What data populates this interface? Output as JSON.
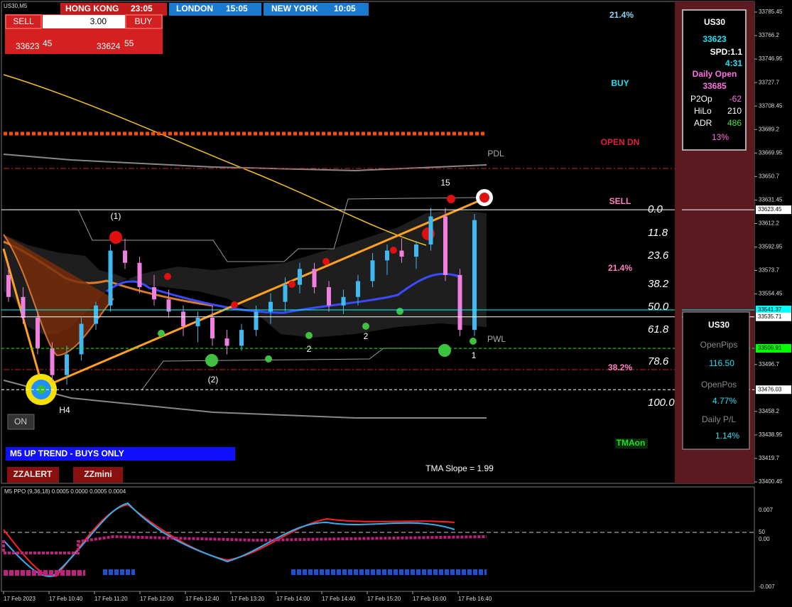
{
  "symbol_label": "US30,M5",
  "sessions": [
    {
      "name": "HONG KONG",
      "time": "23:05"
    },
    {
      "name": "LONDON",
      "time": "15:05"
    },
    {
      "name": "NEW YORK",
      "time": "10:05"
    }
  ],
  "trade_panel": {
    "sell": "SELL",
    "lots": "3.00",
    "buy": "BUY",
    "bid_big": "33623",
    "bid_pips": "45",
    "ask_big": "33624",
    "ask_pips": "55"
  },
  "chart_data": {
    "type": "candlestick",
    "candles": [
      [
        33570,
        33580,
        33548,
        33552
      ],
      [
        33552,
        33560,
        33530,
        33535
      ],
      [
        33535,
        33540,
        33505,
        33510
      ],
      [
        33510,
        33515,
        33482,
        33488
      ],
      [
        33488,
        33512,
        33480,
        33505
      ],
      [
        33505,
        33535,
        33500,
        33530
      ],
      [
        33530,
        33548,
        33525,
        33545
      ],
      [
        33545,
        33595,
        33540,
        33590
      ],
      [
        33590,
        33600,
        33575,
        33580
      ],
      [
        33580,
        33585,
        33555,
        33560
      ],
      [
        33560,
        33570,
        33545,
        33550
      ],
      [
        33550,
        33558,
        33535,
        33540
      ],
      [
        33540,
        33545,
        33520,
        33528
      ],
      [
        33528,
        33540,
        33515,
        33535
      ],
      [
        33535,
        33545,
        33512,
        33518
      ],
      [
        33518,
        33525,
        33505,
        33512
      ],
      [
        33512,
        33530,
        33508,
        33525
      ],
      [
        33525,
        33545,
        33520,
        33540
      ],
      [
        33540,
        33555,
        33530,
        33548
      ],
      [
        33548,
        33568,
        33540,
        33562
      ],
      [
        33562,
        33580,
        33555,
        33575
      ],
      [
        33575,
        33580,
        33555,
        33560
      ],
      [
        33560,
        33565,
        33540,
        33545
      ],
      [
        33545,
        33558,
        33538,
        33552
      ],
      [
        33552,
        33570,
        33545,
        33565
      ],
      [
        33565,
        33588,
        33560,
        33582
      ],
      [
        33582,
        33595,
        33570,
        33590
      ],
      [
        33590,
        33600,
        33580,
        33585
      ],
      [
        33585,
        33598,
        33575,
        33595
      ],
      [
        33595,
        33625,
        33590,
        33618
      ],
      [
        33618,
        33625,
        33565,
        33570
      ],
      [
        33570,
        33575,
        33520,
        33525
      ],
      [
        33525,
        33620,
        33520,
        33615
      ]
    ],
    "ylim": [
      33400.45,
      33785.45
    ],
    "yticks": [
      33785.45,
      33766.2,
      33746.95,
      33727.7,
      33708.45,
      33689.2,
      33669.95,
      33650.7,
      33631.45,
      33612.2,
      33592.95,
      33573.7,
      33554.45,
      33496.7,
      33458.2,
      33438.95,
      33419.7,
      33400.45
    ],
    "levels": [
      {
        "value": 33623.45,
        "color": "#ffffff"
      },
      {
        "value": 33541.37,
        "color": "#00ffff"
      },
      {
        "value": 33535.71,
        "color": "#ffffff"
      },
      {
        "value": 33509.91,
        "color": "#00ff00"
      },
      {
        "value": 33476.03,
        "color": "#ffffff"
      }
    ],
    "time_labels": [
      "17 Feb 2023",
      "17 Feb 10:40",
      "17 Feb 11:20",
      "17 Feb 12:00",
      "17 Feb 12:40",
      "17 Feb 13:20",
      "17 Feb 14:00",
      "17 Feb 14:40",
      "17 Feb 15:20",
      "17 Feb 16:00",
      "17 Feb 16:40"
    ],
    "fib_labels": [
      "0.0",
      "11.8",
      "23.6",
      "38.2",
      "50.0",
      "61.8",
      "78.6",
      "100.0"
    ]
  },
  "annotations": {
    "top_pct": "21.4%",
    "buy": "BUY",
    "open_dn": "OPEN DN",
    "sell": "SELL",
    "mid_pct": "21.4%",
    "low_pct": "38.2%",
    "pdl": "PDL",
    "pwl": "PWL",
    "n15": "15",
    "p1": "(1)",
    "p2": "(2)",
    "two_a": "2",
    "two_b": "2",
    "one": "1",
    "h4": "H4",
    "tma_slope": "TMA Slope = 1.99",
    "tma_on": "TMAon",
    "trend": "M5 UP TREND - BUYS ONLY",
    "zzalert": "ZZALERT",
    "zzmini": "ZZmini",
    "on": "ON"
  },
  "info_panel": {
    "symbol": "US30",
    "price": "33623",
    "spread": "SPD:1.1",
    "timer": "4:31",
    "daily_open_label": "Daily Open",
    "daily_open": "33685",
    "p2op_label": "P2Op",
    "p2op": "-62",
    "hilo_label": "HiLo",
    "hilo": "210",
    "adr_label": "ADR",
    "adr": "486",
    "pct": "13%"
  },
  "pl_panel": {
    "symbol": "US30",
    "open_pips_label": "OpenPips",
    "open_pips": "116.50",
    "open_pos_label": "OpenPos",
    "open_pos": "4.77%",
    "daily_pl_label": "Daily P/L",
    "daily_pl": "1.14%"
  },
  "ppo": {
    "label": "M5 PPO (9,36,18) 0.0005 0.0000 0.0005 0.0004",
    "axis": [
      "0.007",
      "50",
      "0.00",
      "-0.007"
    ]
  }
}
